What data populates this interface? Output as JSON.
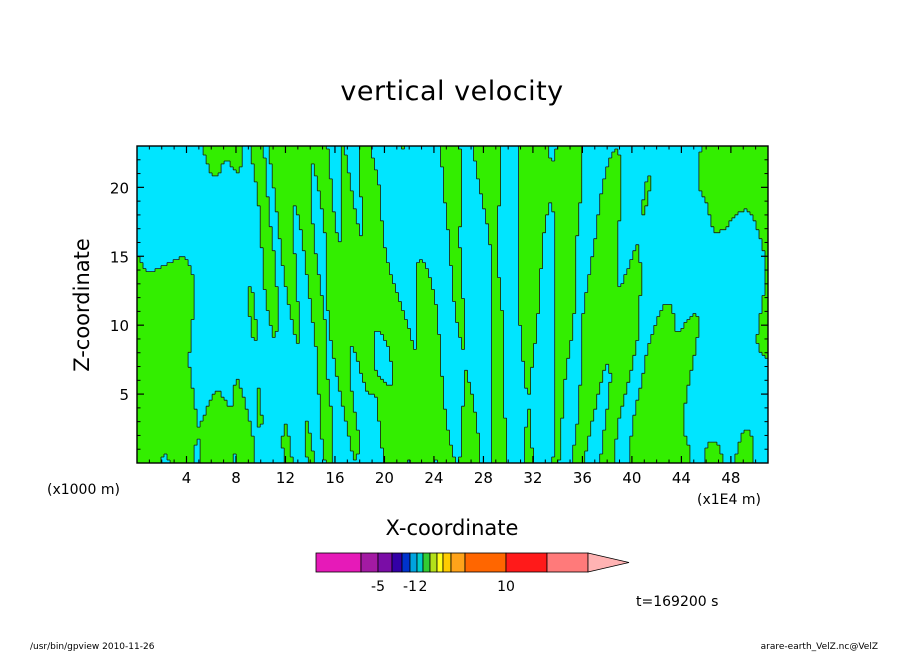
{
  "chart_data": {
    "type": "heatmap",
    "title": "vertical velocity",
    "xlabel": "X-coordinate",
    "ylabel": "Z-coordinate",
    "x_unit_note": "(x1000 m)",
    "x_scale_note": "(x1E4 m)",
    "xlim": [
      0,
      51
    ],
    "ylim": [
      0,
      23
    ],
    "x_ticks": [
      4,
      8,
      12,
      16,
      20,
      24,
      28,
      32,
      36,
      40,
      44,
      48
    ],
    "y_ticks": [
      5,
      10,
      15,
      20
    ],
    "legend_ticks": [
      "-5",
      "-1",
      "2",
      "10"
    ],
    "legend_colors": [
      "#e61ab8",
      "#a31aa3",
      "#7a0da6",
      "#3300a6",
      "#0033cc",
      "#00a3e0",
      "#00cccc",
      "#33cc33",
      "#b3e01a",
      "#ffff1a",
      "#ffcc00",
      "#ffa31a",
      "#ff6600",
      "#ff1a1a",
      "#ff7a7a",
      "#ffb3b3"
    ],
    "field_colors": {
      "negative": "#00e5ff",
      "positive": "#33ee00",
      "contour": "#1a1a1a"
    }
  },
  "labels": {
    "timestamp": "t=169200 s",
    "footer_left": "/usr/bin/gpview   2010-11-26",
    "footer_right": "arare-earth_VelZ.nc@VelZ"
  }
}
